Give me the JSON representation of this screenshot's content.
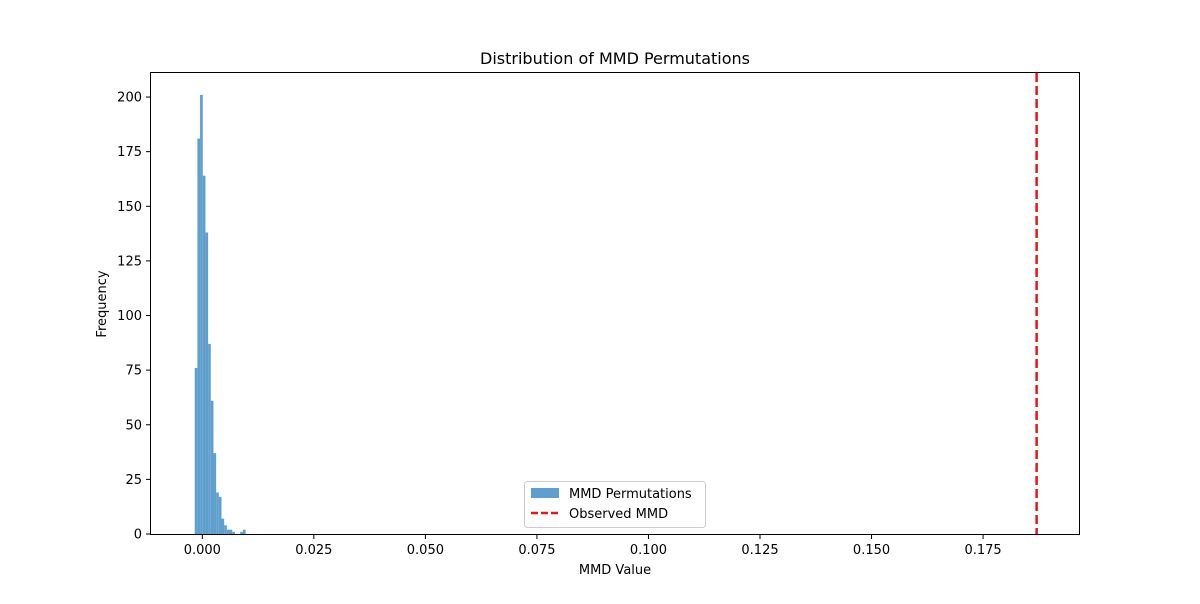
{
  "chart_data": {
    "type": "bar",
    "title": "Distribution of MMD Permutations",
    "xlabel": "MMD Value",
    "ylabel": "Frequency",
    "xlim": [
      -0.0115,
      0.1965
    ],
    "ylim": [
      0,
      211
    ],
    "x_ticks": [
      0.0,
      0.025,
      0.05,
      0.075,
      0.1,
      0.125,
      0.15,
      0.175
    ],
    "x_tick_labels": [
      "0.000",
      "0.025",
      "0.050",
      "0.075",
      "0.100",
      "0.125",
      "0.150",
      "0.175"
    ],
    "y_ticks": [
      0,
      25,
      50,
      75,
      100,
      125,
      150,
      175,
      200
    ],
    "y_tick_labels": [
      "0",
      "25",
      "50",
      "75",
      "100",
      "125",
      "150",
      "175",
      "200"
    ],
    "grid": false,
    "legend": {
      "placement": "lower-center",
      "entries": [
        "MMD Permutations",
        "Observed MMD"
      ]
    },
    "series": [
      {
        "name": "MMD Permutations",
        "kind": "histogram",
        "color": "#5f9fcd",
        "bin_edges": [
          -0.0017,
          -0.0011,
          -0.0005,
          0.0001,
          0.0007,
          0.0013,
          0.0019,
          0.0025,
          0.0031,
          0.0037,
          0.0043,
          0.0049,
          0.0055,
          0.0061,
          0.0067,
          0.0073,
          0.0079,
          0.0085,
          0.0091,
          0.0097
        ],
        "counts": [
          76,
          181,
          201,
          164,
          138,
          87,
          61,
          37,
          19,
          17,
          7,
          4,
          2,
          2,
          1,
          0,
          0,
          1,
          2
        ]
      },
      {
        "name": "Observed MMD",
        "kind": "vline",
        "color": "#e8161b",
        "x": 0.187
      }
    ]
  }
}
